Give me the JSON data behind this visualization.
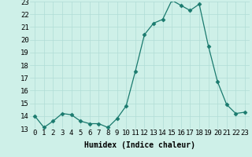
{
  "x": [
    0,
    1,
    2,
    3,
    4,
    5,
    6,
    7,
    8,
    9,
    10,
    11,
    12,
    13,
    14,
    15,
    16,
    17,
    18,
    19,
    20,
    21,
    22,
    23
  ],
  "y": [
    14.0,
    13.1,
    13.6,
    14.2,
    14.1,
    13.6,
    13.4,
    13.4,
    13.1,
    13.8,
    14.8,
    17.5,
    20.4,
    21.3,
    21.6,
    23.1,
    22.7,
    22.3,
    22.8,
    19.5,
    16.7,
    14.9,
    14.2,
    14.3
  ],
  "line_color": "#1a7a6e",
  "marker": "D",
  "marker_size": 2.5,
  "bg_color": "#cef0e8",
  "grid_color": "#b0ddd6",
  "xlabel": "Humidex (Indice chaleur)",
  "ylim": [
    13,
    23
  ],
  "xlim": [
    -0.5,
    23.5
  ],
  "yticks": [
    13,
    14,
    15,
    16,
    17,
    18,
    19,
    20,
    21,
    22,
    23
  ],
  "xticks": [
    0,
    1,
    2,
    3,
    4,
    5,
    6,
    7,
    8,
    9,
    10,
    11,
    12,
    13,
    14,
    15,
    16,
    17,
    18,
    19,
    20,
    21,
    22,
    23
  ],
  "xlabel_fontsize": 7,
  "tick_fontsize": 6.5
}
